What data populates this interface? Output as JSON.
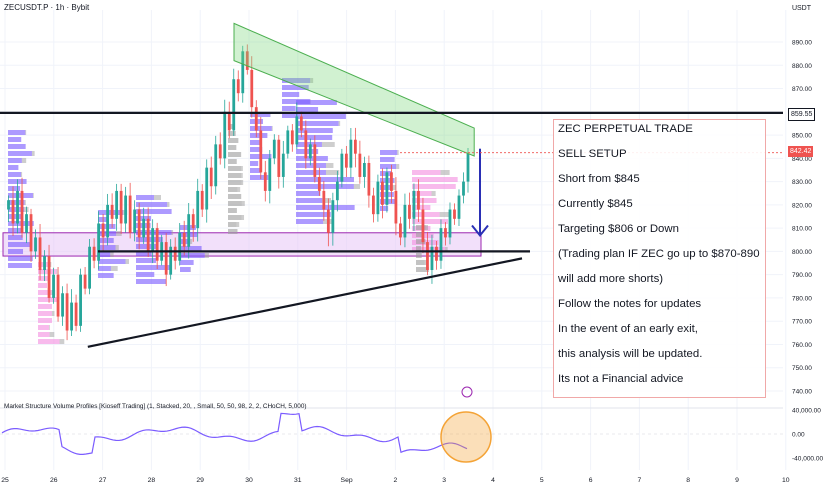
{
  "header": {
    "symbol_title": "ZECUSDT.P · 1h · Bybit",
    "currency": "USDT"
  },
  "price_axis": {
    "ticks": [
      "890.00",
      "880.00",
      "870.00",
      "860.00",
      "850.00",
      "840.00",
      "830.00",
      "820.00",
      "810.00",
      "800.00",
      "790.00",
      "780.00",
      "770.00",
      "760.00",
      "750.00",
      "740.00"
    ],
    "current_price": "842.42",
    "level_price": "859.55"
  },
  "indicator": {
    "title": "Market Structure Volume Profiles [Kioseff Trading] (1, Stacked, 20, , Small, 50, 50, 98, 2, 2, CHoCH, 5,000)",
    "ticks": [
      "40,000.00",
      "0.00",
      "-40,000.00"
    ],
    "icon": "lightning-icon"
  },
  "time_axis": {
    "ticks": [
      "25",
      "26",
      "27",
      "28",
      "29",
      "30",
      "31",
      "Sep",
      "2",
      "3",
      "4",
      "5",
      "6",
      "7",
      "8",
      "9",
      "10"
    ]
  },
  "notes": {
    "lines": [
      "ZEC PERPETUAL TRADE",
      "SELL SETUP",
      "Short from $845",
      "Currently $845",
      "Targeting $806 or Down",
      "(Trading plan IF ZEC go up to $870-890",
      "will add more shorts)",
      "Follow the notes for updates",
      "In the event of an early exit,",
      "this analysis will be updated.",
      "Its not a Financial advice"
    ]
  },
  "colors": {
    "bull": "#26a69a",
    "bear": "#ef5350",
    "profile_purple": "#7b5cff",
    "profile_pink": "#f48fe1",
    "profile_gray": "#9e9e9e",
    "zone_fill": "#e7c6f5",
    "zone_border": "#9c27b0",
    "channel": "#7cd67c",
    "arrow": "#2a2fb5",
    "circle": "#f4a336"
  },
  "chart_data": {
    "type": "candlestick",
    "symbol": "ZECUSDT.P",
    "interval": "1h",
    "exchange": "Bybit",
    "y_range": [
      734,
      896
    ],
    "current_price": 842.42,
    "key_level": 859.55,
    "x_dates": [
      "25",
      "26",
      "27",
      "28",
      "29",
      "30",
      "31",
      "Sep",
      "2",
      "3",
      "4",
      "5",
      "6",
      "7",
      "8",
      "9",
      "10"
    ],
    "price_path": [
      818,
      822,
      812,
      826,
      808,
      816,
      800,
      806,
      792,
      798,
      780,
      790,
      772,
      782,
      766,
      778,
      768,
      790,
      784,
      802,
      796,
      812,
      806,
      820,
      814,
      826,
      812,
      824,
      808,
      818,
      806,
      814,
      800,
      810,
      796,
      804,
      790,
      802,
      796,
      808,
      802,
      816,
      810,
      826,
      818,
      836,
      828,
      846,
      840,
      860,
      852,
      874,
      868,
      886,
      878,
      862,
      852,
      834,
      826,
      840,
      848,
      832,
      842,
      852,
      846,
      858,
      852,
      840,
      846,
      832,
      826,
      818,
      808,
      822,
      830,
      842,
      836,
      848,
      842,
      832,
      838,
      824,
      816,
      830,
      820,
      834,
      826,
      812,
      806,
      820,
      814,
      826,
      818,
      804,
      792,
      802,
      796,
      810,
      806,
      818,
      814,
      824,
      830,
      842
    ],
    "support_zone": [
      798,
      808
    ],
    "support_line": 800,
    "ascending_trendline": [
      {
        "x": "26",
        "y": 759
      },
      {
        "x": "Sep",
        "y": 793
      }
    ],
    "descending_channel": {
      "upper": [
        {
          "x": "30",
          "y": 898
        },
        {
          "x": "3",
          "y": 853
        }
      ],
      "lower": [
        {
          "x": "30",
          "y": 882
        },
        {
          "x": "3",
          "y": 841
        }
      ]
    },
    "arrow_target": 806,
    "indicator_ticks": [
      40000,
      0,
      -40000
    ]
  }
}
